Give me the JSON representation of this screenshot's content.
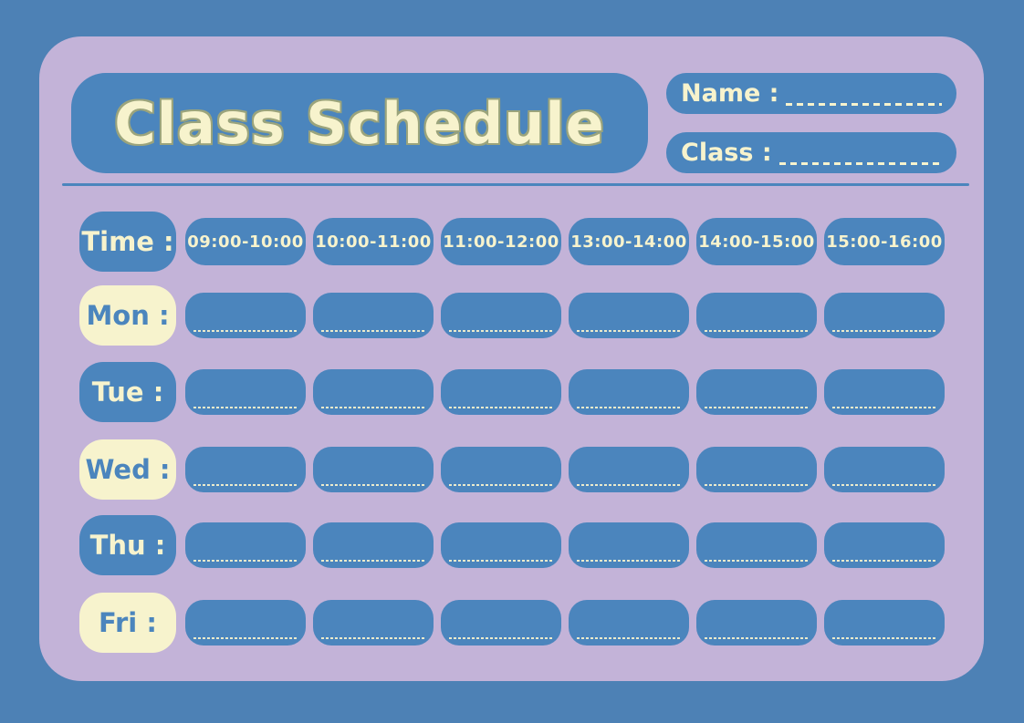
{
  "title": "Class Schedule",
  "header": {
    "name_label": "Name :",
    "class_label": "Class :"
  },
  "schedule": {
    "time_label": "Time :",
    "time_slots": [
      "09:00-10:00",
      "10:00-11:00",
      "11:00-12:00",
      "13:00-14:00",
      "14:00-15:00",
      "15:00-16:00"
    ],
    "days": [
      {
        "label": "Mon :"
      },
      {
        "label": "Tue :"
      },
      {
        "label": "Wed :"
      },
      {
        "label": "Thu :"
      },
      {
        "label": "Fri :"
      }
    ]
  },
  "colors": {
    "page_background_blue": "#4d81b5",
    "accent_blue": "#4b85bd",
    "panel_lavender": "#c3b3d8",
    "cream": "#f7f3cd",
    "title_outline_olive": "#9ba47c"
  }
}
